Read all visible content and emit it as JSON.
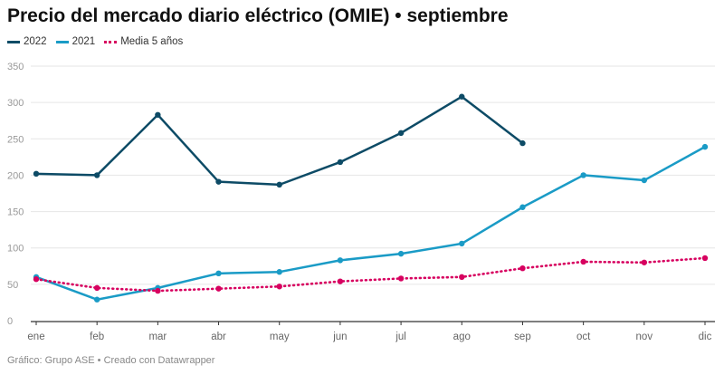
{
  "chart_data": {
    "type": "line",
    "title": "Precio del mercado diario eléctrico (OMIE) • septiembre",
    "categories": [
      "ene",
      "feb",
      "mar",
      "abr",
      "may",
      "jun",
      "jul",
      "ago",
      "sep",
      "oct",
      "nov",
      "dic"
    ],
    "ylim": [
      0,
      350
    ],
    "yticks": [
      0,
      50,
      100,
      150,
      200,
      250,
      300,
      350
    ],
    "grid": true,
    "legend": "top-left",
    "series": [
      {
        "name": "2022",
        "color": "#0d4b66",
        "style": "solid",
        "values": [
          202,
          200,
          283,
          191,
          187,
          218,
          258,
          308,
          244,
          null,
          null,
          null
        ]
      },
      {
        "name": "2021",
        "color": "#1a9bc6",
        "style": "solid",
        "values": [
          60,
          29,
          45,
          65,
          67,
          83,
          92,
          106,
          156,
          200,
          193,
          239
        ]
      },
      {
        "name": "Media 5 años",
        "color": "#d7005f",
        "style": "dotted",
        "values": [
          57,
          45,
          41,
          44,
          47,
          54,
          58,
          60,
          72,
          81,
          80,
          86
        ]
      }
    ]
  },
  "source": "Gráfico: Grupo ASE • Creado con Datawrapper"
}
